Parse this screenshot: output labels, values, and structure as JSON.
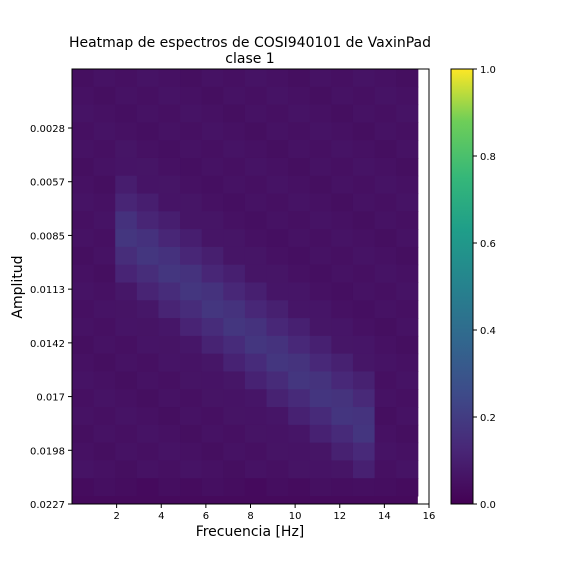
{
  "chart_data": {
    "type": "heatmap",
    "title": "Heatmap de espectros de COSI940101 de VaxinPad",
    "subtitle": "clase 1",
    "xlabel": "Frecuencia [Hz]",
    "ylabel": "Amplitud",
    "xlim": [
      0,
      16
    ],
    "x_ticks": [
      "2",
      "4",
      "6",
      "8",
      "10",
      "12",
      "14",
      "16"
    ],
    "y_ticks": [
      "0.0028",
      "0.0057",
      "0.0085",
      "0.0113",
      "0.0142",
      "0.017",
      "0.0198",
      "0.0227"
    ],
    "x_extent": [
      0,
      15.5
    ],
    "colormap": "viridis",
    "colorbar": {
      "range": [
        0,
        1
      ],
      "ticks": [
        "0.0",
        "0.2",
        "0.4",
        "0.6",
        "0.8",
        "1.0"
      ]
    },
    "rows": 24,
    "cols": 16,
    "band": {
      "x_start": 1.5,
      "x_end": 13.5,
      "row_start": 0.35,
      "row_end": 0.85,
      "peak": 0.12
    },
    "base_value": 0.045,
    "values_description_free": true
  }
}
